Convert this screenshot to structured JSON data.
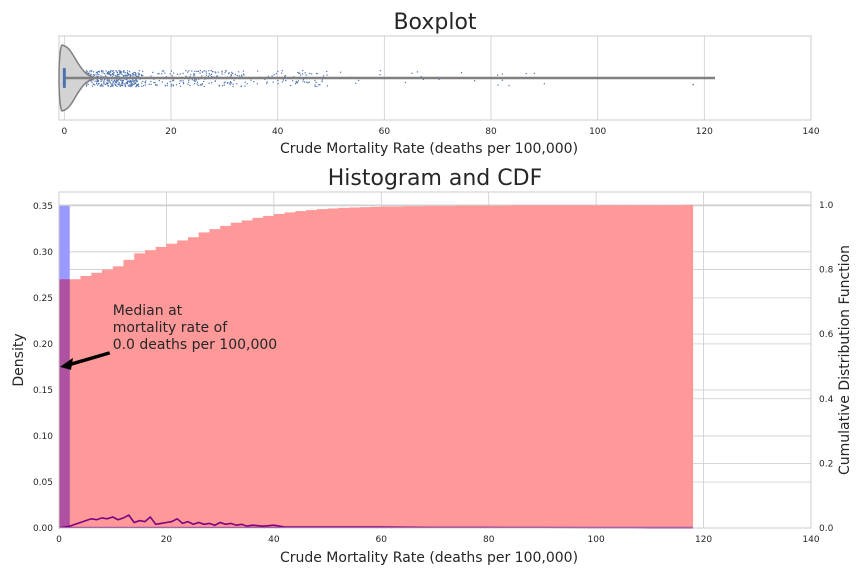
{
  "chart_data": [
    {
      "type": "box",
      "title": "Boxplot",
      "xlabel": "Crude Mortality Rate (deaths per 100,000)",
      "xlim": [
        -1,
        140
      ],
      "xticks": [
        0,
        20,
        40,
        60,
        80,
        100,
        120,
        140
      ],
      "median": 0.0,
      "q1": 0.0,
      "q3": 0.0,
      "whisker_low": 0.0,
      "whisker_high": 122.0,
      "max": 122.0,
      "colors": {
        "violin": "#d3d3d3",
        "box": "#4c72b0",
        "points": "#4c72b0",
        "whisker": "#808080"
      }
    },
    {
      "type": "bar",
      "title": "Histogram and CDF",
      "xlabel": "Crude Mortality Rate (deaths per 100,000)",
      "ylabel": "Density",
      "ylabel_right": "Cumulative Distribution Function",
      "xlim": [
        0,
        140
      ],
      "ylim": [
        0,
        0.365
      ],
      "ylim_right": [
        0,
        1.04
      ],
      "xticks": [
        0,
        20,
        40,
        60,
        80,
        100,
        120,
        140
      ],
      "yticks": [
        "0.00",
        "0.05",
        "0.10",
        "0.15",
        "0.20",
        "0.25",
        "0.30",
        "0.35"
      ],
      "yticks_right": [
        "0.0",
        "0.2",
        "0.4",
        "0.6",
        "0.8",
        "1.0"
      ],
      "histogram": {
        "x_start": 0,
        "x_end": 2,
        "density": 0.35,
        "color": "#9999ff"
      },
      "cdf": {
        "bin_width": 2,
        "x_start": 0,
        "values": [
          0.77,
          0.77,
          0.78,
          0.79,
          0.8,
          0.81,
          0.83,
          0.85,
          0.86,
          0.87,
          0.88,
          0.89,
          0.9,
          0.915,
          0.925,
          0.935,
          0.945,
          0.952,
          0.96,
          0.966,
          0.972,
          0.977,
          0.981,
          0.984,
          0.987,
          0.989,
          0.991,
          0.992,
          0.993,
          0.994,
          0.995,
          0.995,
          0.996,
          0.996,
          0.997,
          0.997,
          0.997,
          0.998,
          0.998,
          0.998,
          0.998,
          0.998,
          0.999,
          0.999,
          0.999,
          0.999,
          0.999,
          0.999,
          0.999,
          0.999,
          0.999,
          0.999,
          0.999,
          0.999,
          0.999,
          0.999,
          0.999,
          0.999,
          1.0
        ],
        "color": "#ff9999"
      },
      "kde": {
        "x": [
          0,
          1,
          2,
          3,
          4,
          5,
          6,
          7,
          8,
          9,
          10,
          11,
          12,
          13,
          14,
          15,
          16,
          17,
          18,
          19,
          20,
          21,
          22,
          23,
          24,
          25,
          26,
          27,
          28,
          29,
          30,
          31,
          32,
          33,
          34,
          35,
          36,
          38,
          40,
          42,
          45,
          50,
          55,
          60,
          70,
          80,
          90,
          100,
          110,
          118
        ],
        "y": [
          0.0,
          0.001,
          0.002,
          0.004,
          0.006,
          0.008,
          0.01,
          0.009,
          0.011,
          0.01,
          0.012,
          0.009,
          0.011,
          0.014,
          0.006,
          0.008,
          0.007,
          0.012,
          0.004,
          0.005,
          0.006,
          0.007,
          0.01,
          0.005,
          0.007,
          0.004,
          0.006,
          0.004,
          0.005,
          0.003,
          0.006,
          0.004,
          0.005,
          0.003,
          0.004,
          0.002,
          0.003,
          0.002,
          0.003,
          0.001,
          0.001,
          0.001,
          0.001,
          0.001,
          0.0005,
          0.0004,
          0.0003,
          0.0002,
          0.0001,
          0.0
        ],
        "color": "#800080"
      },
      "annotation": {
        "text_lines": [
          "Median at",
          "mortality rate of",
          "0.0 deaths per 100,000"
        ],
        "xy": [
          0.0,
          0.175
        ],
        "xytext": [
          10,
          0.225
        ]
      }
    }
  ]
}
